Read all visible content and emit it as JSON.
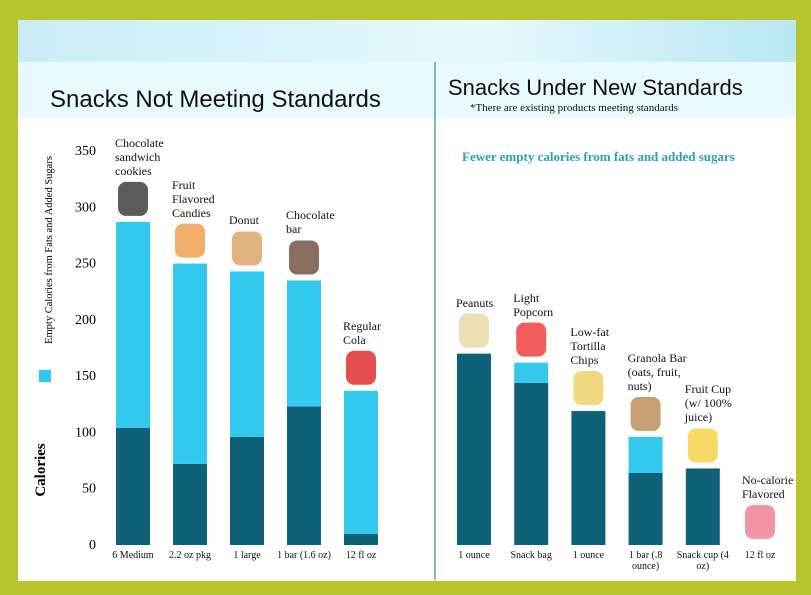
{
  "chart_data": {
    "type": "stacked-bar",
    "sections": [
      {
        "title": "Snacks Not Meeting Standards"
      },
      {
        "title": "Snacks Under New Standards",
        "subtitle": "*There are existing products meeting standards"
      }
    ],
    "annotation": "Fewer empty calories from fats and added sugars",
    "ylabel": "Calories",
    "categories": [
      "6 Medium",
      "2.2 oz pkg",
      "1 large",
      "1 bar (1.6 oz)",
      "12 fl oz",
      "1 ounce",
      "Snack bag",
      "1 ounce",
      "1 bar (.8 ounce)",
      "Snack cup (4 oz)",
      "12 fl oz"
    ],
    "product_labels": [
      "Chocolate sandwich cookies",
      "Fruit Flavored Candies",
      "Donut",
      "Chocolate bar",
      "Regular Cola",
      "Peanuts",
      "Light Popcorn",
      "Low-fat Tortilla Chips",
      "Granola Bar (oats, fruit, nuts)",
      "Fruit Cup (w/ 100% juice)",
      "No-calorie Flavored"
    ],
    "series": [
      {
        "color": "#0f6177",
        "values": [
          104,
          72,
          96,
          123,
          10,
          170,
          144,
          119,
          64,
          68,
          0
        ]
      },
      {
        "name": "Empty Calories from Fats and Added Sugars",
        "color": "#33c9ef",
        "values": [
          183,
          178,
          147,
          112,
          127,
          0,
          18,
          0,
          32,
          0,
          0
        ]
      }
    ],
    "ylim": [
      0,
      350
    ],
    "yticks": [
      0,
      50,
      100,
      150,
      200,
      250,
      300,
      350
    ]
  }
}
